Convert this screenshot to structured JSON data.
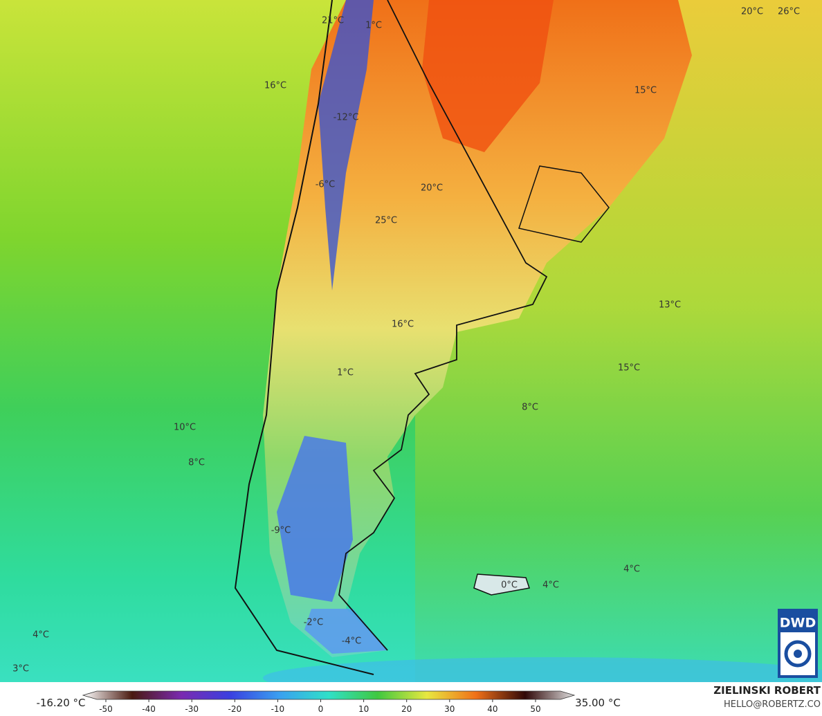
{
  "map": {
    "temperature_labels": [
      "21°C",
      "1°C",
      "20°C",
      "26°C",
      "16°C",
      "15°C",
      "-12°C",
      "-6°C",
      "20°C",
      "25°C",
      "13°C",
      "16°C",
      "15°C",
      "1°C",
      "8°C",
      "10°C",
      "8°C",
      "-9°C",
      "4°C",
      "0°C",
      "4°C",
      "-2°C",
      "-4°C",
      "4°C",
      "3°C"
    ]
  },
  "colorbar": {
    "min_label": "-16.20 °C",
    "max_label": "35.00 °C",
    "range": [
      -50,
      50
    ],
    "ticks": [
      -50,
      -40,
      -30,
      -20,
      -10,
      0,
      10,
      20,
      30,
      40,
      50
    ]
  },
  "credit": {
    "author": "ZIELINSKI ROBERT",
    "contact": "HELLO@ROBERTZ.CO",
    "logo": "DWD"
  }
}
